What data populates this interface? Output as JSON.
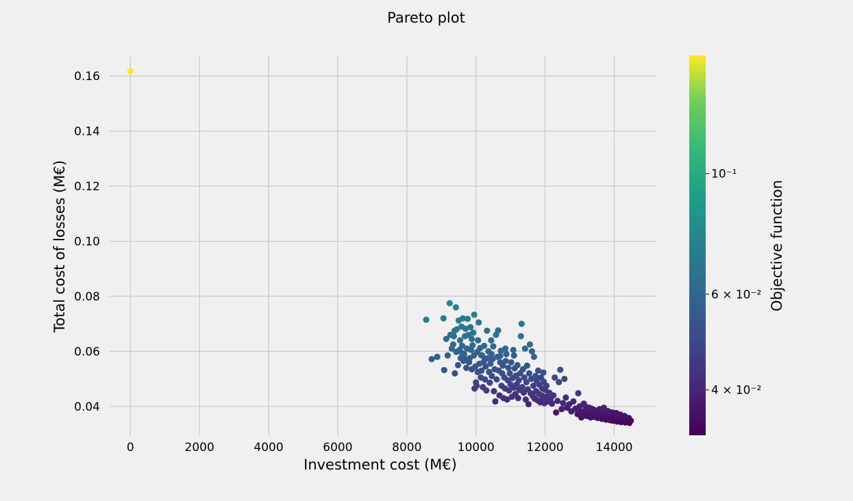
{
  "chart_data": {
    "type": "scatter",
    "title": "Pareto plot",
    "xlabel": "Investment cost (M€)",
    "ylabel": "Total cost of losses (M€)",
    "xlim": [
      -600,
      15200
    ],
    "ylim": [
      0.0295,
      0.1675
    ],
    "x_ticks": [
      0,
      2000,
      4000,
      6000,
      8000,
      10000,
      12000,
      14000
    ],
    "x_tick_labels": [
      "0",
      "2000",
      "4000",
      "6000",
      "8000",
      "10000",
      "12000",
      "14000"
    ],
    "y_ticks": [
      0.04,
      0.06,
      0.08,
      0.1,
      0.12,
      0.14,
      0.16
    ],
    "y_tick_labels": [
      "0.04",
      "0.06",
      "0.08",
      "0.10",
      "0.12",
      "0.14",
      "0.16"
    ],
    "grid": true,
    "colormap": "viridis",
    "colorbar": {
      "label": "Objective function",
      "scale": "log",
      "range": [
        0.033,
        0.165
      ],
      "ticks": [
        {
          "value": 0.04,
          "label": "4 × 10⁻²"
        },
        {
          "value": 0.06,
          "label": "6 × 10⁻²"
        },
        {
          "value": 0.1,
          "label": "10⁻¹"
        }
      ]
    },
    "series": [
      {
        "outlier": [
          0,
          0.1618
        ],
        "points": [
          [
            8560,
            0.0715
          ],
          [
            8720,
            0.0572
          ],
          [
            8880,
            0.058
          ],
          [
            9060,
            0.072
          ],
          [
            9080,
            0.0532
          ],
          [
            9140,
            0.0645
          ],
          [
            9180,
            0.0585
          ],
          [
            9240,
            0.0775
          ],
          [
            9260,
            0.066
          ],
          [
            9300,
            0.061
          ],
          [
            9340,
            0.0625
          ],
          [
            9360,
            0.0655
          ],
          [
            9380,
            0.0675
          ],
          [
            9390,
            0.052
          ],
          [
            9420,
            0.076
          ],
          [
            9430,
            0.0598
          ],
          [
            9440,
            0.068
          ],
          [
            9480,
            0.055
          ],
          [
            9500,
            0.0712
          ],
          [
            9520,
            0.0605
          ],
          [
            9540,
            0.064
          ],
          [
            9560,
            0.0575
          ],
          [
            9580,
            0.069
          ],
          [
            9600,
            0.062
          ],
          [
            9620,
            0.072
          ],
          [
            9640,
            0.0565
          ],
          [
            9660,
            0.059
          ],
          [
            9680,
            0.0655
          ],
          [
            9700,
            0.0682
          ],
          [
            9720,
            0.054
          ],
          [
            9740,
            0.061
          ],
          [
            9760,
            0.0718
          ],
          [
            9780,
            0.066
          ],
          [
            9800,
            0.056
          ],
          [
            9820,
            0.0575
          ],
          [
            9840,
            0.0688
          ],
          [
            9860,
            0.0605
          ],
          [
            9880,
            0.0645
          ],
          [
            9900,
            0.0622
          ],
          [
            9920,
            0.0668
          ],
          [
            9940,
            0.0585
          ],
          [
            9950,
            0.0733
          ],
          [
            9960,
            0.0465
          ],
          [
            9980,
            0.0545
          ],
          [
            10000,
            0.0487
          ],
          [
            10020,
            0.0475
          ],
          [
            10040,
            0.0598
          ],
          [
            10060,
            0.064
          ],
          [
            10080,
            0.0705
          ],
          [
            10100,
            0.0555
          ],
          [
            10120,
            0.0612
          ],
          [
            10140,
            0.0505
          ],
          [
            10160,
            0.053
          ],
          [
            10180,
            0.0585
          ],
          [
            10200,
            0.047
          ],
          [
            10220,
            0.056
          ],
          [
            10240,
            0.062
          ],
          [
            10260,
            0.0498
          ],
          [
            10280,
            0.0545
          ],
          [
            10300,
            0.0458
          ],
          [
            10320,
            0.0675
          ],
          [
            10340,
            0.0575
          ],
          [
            10360,
            0.06
          ],
          [
            10380,
            0.0525
          ],
          [
            10400,
            0.0486
          ],
          [
            10420,
            0.0555
          ],
          [
            10440,
            0.064
          ],
          [
            10460,
            0.051
          ],
          [
            10480,
            0.0572
          ],
          [
            10500,
            0.0618
          ],
          [
            10520,
            0.0455
          ],
          [
            10540,
            0.0535
          ],
          [
            10560,
            0.0418
          ],
          [
            10580,
            0.066
          ],
          [
            10600,
            0.0498
          ],
          [
            10620,
            0.058
          ],
          [
            10640,
            0.0676
          ],
          [
            10660,
            0.053
          ],
          [
            10680,
            0.044
          ],
          [
            10700,
            0.056
          ],
          [
            10720,
            0.0602
          ],
          [
            10740,
            0.0475
          ],
          [
            10760,
            0.052
          ],
          [
            10780,
            0.0548
          ],
          [
            10800,
            0.043
          ],
          [
            10820,
            0.0505
          ],
          [
            10840,
            0.0465
          ],
          [
            10860,
            0.0565
          ],
          [
            10880,
            0.059
          ],
          [
            10900,
            0.0425
          ],
          [
            10920,
            0.0495
          ],
          [
            10940,
            0.054
          ],
          [
            10960,
            0.0458
          ],
          [
            10980,
            0.052
          ],
          [
            11000,
            0.048
          ],
          [
            11020,
            0.056
          ],
          [
            11040,
            0.0435
          ],
          [
            11060,
            0.0503
          ],
          [
            11080,
            0.0605
          ],
          [
            11100,
            0.0468
          ],
          [
            11120,
            0.0538
          ],
          [
            11140,
            0.0445
          ],
          [
            11160,
            0.0512
          ],
          [
            11180,
            0.048
          ],
          [
            11200,
            0.055
          ],
          [
            11220,
            0.043
          ],
          [
            11240,
            0.0495
          ],
          [
            11260,
            0.046
          ],
          [
            11280,
            0.052
          ],
          [
            11300,
            0.0655
          ],
          [
            11320,
            0.07
          ],
          [
            11340,
            0.047
          ],
          [
            11360,
            0.0535
          ],
          [
            11380,
            0.045
          ],
          [
            11400,
            0.0505
          ],
          [
            11420,
            0.061
          ],
          [
            11440,
            0.0425
          ],
          [
            11460,
            0.0488
          ],
          [
            11480,
            0.0548
          ],
          [
            11500,
            0.0462
          ],
          [
            11520,
            0.0408
          ],
          [
            11540,
            0.052
          ],
          [
            11560,
            0.0625
          ],
          [
            11580,
            0.0448
          ],
          [
            11600,
            0.05
          ],
          [
            11620,
            0.06
          ],
          [
            11640,
            0.0438
          ],
          [
            11660,
            0.0475
          ],
          [
            11680,
            0.058
          ],
          [
            11700,
            0.0428
          ],
          [
            11720,
            0.051
          ],
          [
            11740,
            0.0455
          ],
          [
            11760,
            0.0492
          ],
          [
            11780,
            0.0422
          ],
          [
            11800,
            0.053
          ],
          [
            11820,
            0.0445
          ],
          [
            11840,
            0.0478
          ],
          [
            11860,
            0.0415
          ],
          [
            11880,
            0.0505
          ],
          [
            11900,
            0.044
          ],
          [
            11920,
            0.0465
          ],
          [
            11940,
            0.0425
          ],
          [
            11960,
            0.049
          ],
          [
            11980,
            0.0412
          ],
          [
            12000,
            0.046
          ],
          [
            12020,
            0.0435
          ],
          [
            12040,
            0.0475
          ],
          [
            12080,
            0.0418
          ],
          [
            12120,
            0.045
          ],
          [
            12160,
            0.0428
          ],
          [
            12200,
            0.041
          ],
          [
            12240,
            0.044
          ],
          [
            12280,
            0.0505
          ],
          [
            12320,
            0.0378
          ],
          [
            12360,
            0.042
          ],
          [
            12400,
            0.0488
          ],
          [
            12440,
            0.0533
          ],
          [
            12480,
            0.039
          ],
          [
            12520,
            0.0412
          ],
          [
            12560,
            0.05
          ],
          [
            12600,
            0.0432
          ],
          [
            12640,
            0.0395
          ],
          [
            12700,
            0.0408
          ],
          [
            12760,
            0.0382
          ],
          [
            12820,
            0.0418
          ],
          [
            12880,
            0.0392
          ],
          [
            12940,
            0.0372
          ],
          [
            12960,
            0.0448
          ],
          [
            13000,
            0.04
          ],
          [
            13040,
            0.038
          ],
          [
            13080,
            0.0368
          ],
          [
            13120,
            0.041
          ],
          [
            13160,
            0.0385
          ],
          [
            13200,
            0.0365
          ],
          [
            13240,
            0.0378
          ],
          [
            13280,
            0.0395
          ],
          [
            13320,
            0.036
          ],
          [
            13360,
            0.0372
          ],
          [
            13400,
            0.0388
          ],
          [
            13440,
            0.0362
          ],
          [
            13480,
            0.0375
          ],
          [
            13520,
            0.0358
          ],
          [
            13560,
            0.037
          ],
          [
            13600,
            0.0382
          ],
          [
            13640,
            0.0355
          ],
          [
            13680,
            0.0366
          ],
          [
            13720,
            0.0378
          ],
          [
            13760,
            0.0352
          ],
          [
            13800,
            0.0362
          ],
          [
            13840,
            0.0372
          ],
          [
            13880,
            0.035
          ],
          [
            13920,
            0.036
          ],
          [
            13960,
            0.0348
          ],
          [
            14000,
            0.0356
          ],
          [
            14040,
            0.0365
          ],
          [
            14080,
            0.0345
          ],
          [
            14120,
            0.0354
          ],
          [
            14160,
            0.0362
          ],
          [
            14200,
            0.0343
          ],
          [
            14240,
            0.0352
          ],
          [
            14280,
            0.036
          ],
          [
            14320,
            0.0342
          ],
          [
            14360,
            0.035
          ],
          [
            14400,
            0.0345
          ],
          [
            14440,
            0.034
          ],
          [
            14480,
            0.0348
          ],
          [
            13340,
            0.0392
          ],
          [
            13460,
            0.0385
          ],
          [
            13580,
            0.039
          ],
          [
            13700,
            0.0395
          ],
          [
            13820,
            0.0383
          ],
          [
            13940,
            0.0378
          ],
          [
            14060,
            0.0376
          ],
          [
            14180,
            0.037
          ],
          [
            14300,
            0.0365
          ],
          [
            14420,
            0.0358
          ],
          [
            13180,
            0.0398
          ],
          [
            13050,
            0.036
          ],
          [
            12980,
            0.0388
          ],
          [
            11950,
            0.0523
          ],
          [
            11100,
            0.0585
          ],
          [
            10850,
            0.061
          ],
          [
            10700,
            0.0583
          ],
          [
            10450,
            0.059
          ],
          [
            10250,
            0.057
          ],
          [
            10150,
            0.0586
          ],
          [
            10050,
            0.0525
          ],
          [
            9880,
            0.0535
          ],
          [
            9700,
            0.057
          ],
          [
            9560,
            0.0598
          ]
        ]
      }
    ]
  }
}
